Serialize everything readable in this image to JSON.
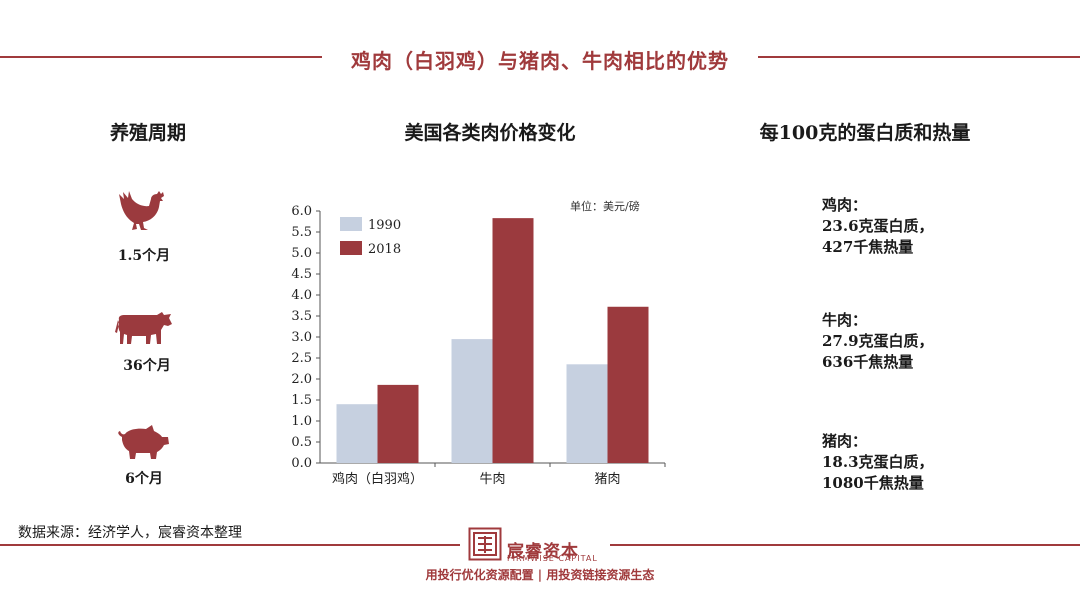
{
  "title": "鸡肉（白羽鸡）与猪肉、牛肉相比的优势",
  "sections": {
    "breeding": {
      "heading": "养殖周期",
      "items": [
        {
          "animal_icon": "chicken-icon",
          "label": "1.5个月"
        },
        {
          "animal_icon": "cow-icon",
          "label": "36个月"
        },
        {
          "animal_icon": "pig-icon",
          "label": "6个月"
        }
      ]
    },
    "price": {
      "heading": "美国各类肉价格变化"
    },
    "nutrition": {
      "heading": "每100克的蛋白质和热量",
      "items": [
        {
          "name": "鸡肉：",
          "protein": "23.6克蛋白质，",
          "energy": "427千焦热量"
        },
        {
          "name": "牛肉：",
          "protein": "27.9克蛋白质，",
          "energy": "636千焦热量"
        },
        {
          "name": "猪肉：",
          "protein": "18.3克蛋白质，",
          "energy": "1080千焦热量"
        }
      ]
    }
  },
  "chart_data": {
    "type": "bar",
    "unit_note": "单位：美元/磅",
    "categories": [
      "鸡肉（白羽鸡）",
      "牛肉",
      "猪肉"
    ],
    "series": [
      {
        "name": "1990",
        "values": [
          1.4,
          2.95,
          2.35
        ],
        "color": "#c6d0e0"
      },
      {
        "name": "2018",
        "values": [
          1.86,
          5.83,
          3.72
        ],
        "color": "#9b3a3e"
      }
    ],
    "ylim": [
      0,
      6.0
    ],
    "yticks": [
      "0.0",
      "0.5",
      "1.0",
      "1.5",
      "2.0",
      "2.5",
      "3.0",
      "3.5",
      "4.0",
      "4.5",
      "5.0",
      "5.5",
      "6.0"
    ],
    "legend": "top-left"
  },
  "source": "数据来源：经济学人，宸睿资本整理",
  "logo": {
    "name": "宸睿资本",
    "english": "FIRMWISE CAPITAL"
  },
  "slogan": "用投行优化资源配置 | 用投资链接资源生态",
  "colors": {
    "accent": "#a03a3c",
    "bar_1990": "#c6d0e0",
    "bar_2018": "#9b3a3e"
  }
}
